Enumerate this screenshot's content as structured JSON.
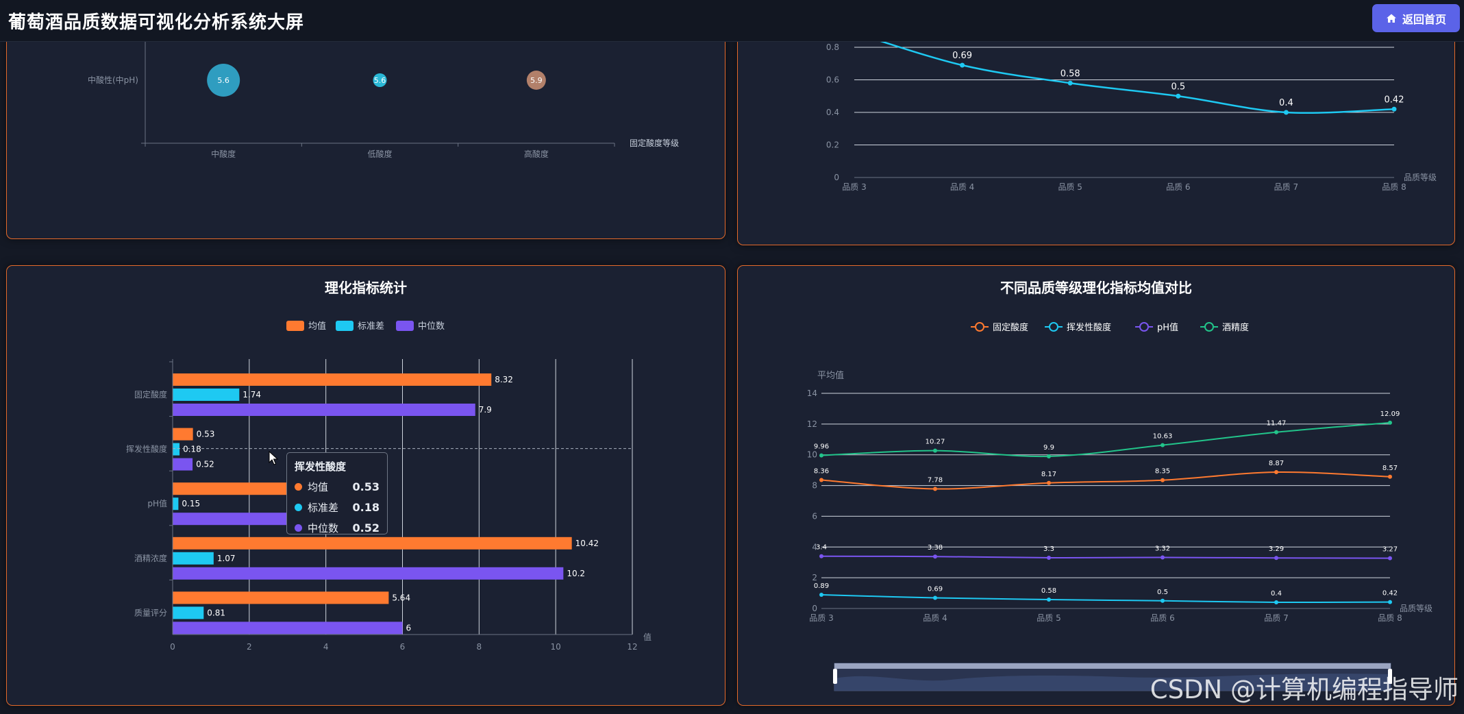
{
  "app": {
    "title": "葡萄酒品质数据可视化分析系统大屏",
    "home_button": "返回首页",
    "watermark": "CSDN @计算机编程指导师"
  },
  "colors": {
    "panel_border": "#e56a2a",
    "accent_button": "#5b63e8",
    "orange": "#ff7a30",
    "cyan": "#1ec9f2",
    "purple": "#7a55f0",
    "green": "#22c48a"
  },
  "chart_data": [
    {
      "id": "bubble",
      "type": "scatter",
      "title": "",
      "ylabel_category": "中酸性(中pH)",
      "categories": [
        "中酸度",
        "低酸度",
        "高酸度"
      ],
      "xlabel": "固定酸度等级",
      "points": [
        {
          "category": "中酸度",
          "value": 5.6,
          "color": "#2f9dc0",
          "size": "large"
        },
        {
          "category": "低酸度",
          "value": 5.6,
          "color": "#2ab8d6",
          "size": "small"
        },
        {
          "category": "高酸度",
          "value": 5.9,
          "color": "#b2806a",
          "size": "medium"
        }
      ]
    },
    {
      "id": "volatile_line",
      "type": "line",
      "title": "",
      "categories": [
        "品质 3",
        "品质 4",
        "品质 5",
        "品质 6",
        "品质 7",
        "品质 8"
      ],
      "xlabel": "品质等级",
      "yticks": [
        "0",
        "0.2",
        "0.4",
        "0.6",
        "0.8"
      ],
      "ylim": [
        0,
        0.8
      ],
      "values": [
        0.89,
        0.69,
        0.58,
        0.5,
        0.4,
        0.42
      ],
      "labels": [
        "",
        "0.69",
        "0.58",
        "0.5",
        "0.4",
        "0.42"
      ],
      "color": "#1ec9f2"
    },
    {
      "id": "stats_bar",
      "type": "bar",
      "orientation": "horizontal",
      "title": "理化指标统计",
      "categories": [
        "固定酸度",
        "挥发性酸度",
        "pH值",
        "酒精浓度",
        "质量评分"
      ],
      "legend": [
        "均值",
        "标准差",
        "中位数"
      ],
      "series": [
        {
          "name": "均值",
          "values": [
            8.32,
            0.53,
            3.31,
            10.42,
            5.64
          ],
          "labels": [
            "8.32",
            "0.53",
            "",
            "10.42",
            "5.64"
          ],
          "color": "#ff7a30"
        },
        {
          "name": "标准差",
          "values": [
            1.74,
            0.18,
            0.15,
            1.07,
            0.81
          ],
          "labels": [
            "1.74",
            "0.18",
            "0.15",
            "1.07",
            "0.81"
          ],
          "color": "#1ec9f2"
        },
        {
          "name": "中位数",
          "values": [
            7.9,
            0.52,
            3.31,
            10.2,
            6
          ],
          "labels": [
            "7.9",
            "0.52",
            "",
            "10.2",
            "6"
          ],
          "color": "#7a55f0"
        }
      ],
      "xticks": [
        "0",
        "2",
        "4",
        "6",
        "8",
        "10",
        "12"
      ],
      "xlim": [
        0,
        12
      ],
      "xlabel": "值",
      "tooltip": {
        "title": "挥发性酸度",
        "rows": [
          {
            "label": "均值",
            "value": "0.53",
            "color": "#ff7a30"
          },
          {
            "label": "标准差",
            "value": "0.18",
            "color": "#1ec9f2"
          },
          {
            "label": "中位数",
            "value": "0.52",
            "color": "#7a55f0"
          }
        ]
      }
    },
    {
      "id": "quality_compare",
      "type": "line",
      "title": "不同品质等级理化指标均值对比",
      "categories": [
        "品质 3",
        "品质 4",
        "品质 5",
        "品质 6",
        "品质 7",
        "品质 8"
      ],
      "ylabel": "平均值",
      "xlabel": "品质等级",
      "yticks": [
        "0",
        "2",
        "4",
        "6",
        "8",
        "10",
        "12",
        "14"
      ],
      "ylim": [
        0,
        14
      ],
      "legend": [
        "固定酸度",
        "挥发性酸度",
        "pH值",
        "酒精度"
      ],
      "series": [
        {
          "name": "固定酸度",
          "values": [
            8.36,
            7.78,
            8.17,
            8.35,
            8.87,
            8.57
          ],
          "labels": [
            "8.36",
            "7.78",
            "8.17",
            "8.35",
            "8.87",
            "8.57"
          ],
          "color": "#ff7a30"
        },
        {
          "name": "挥发性酸度",
          "values": [
            0.89,
            0.69,
            0.58,
            0.5,
            0.4,
            0.42
          ],
          "labels": [
            "0.89",
            "0.69",
            "0.58",
            "0.5",
            "0.4",
            "0.42"
          ],
          "color": "#1ec9f2"
        },
        {
          "name": "pH值",
          "values": [
            3.4,
            3.38,
            3.3,
            3.32,
            3.29,
            3.27
          ],
          "labels": [
            "3.4",
            "3.38",
            "3.3",
            "3.32",
            "3.29",
            "3.27"
          ],
          "color": "#7a55f0"
        },
        {
          "name": "酒精度",
          "values": [
            9.96,
            10.27,
            9.9,
            10.63,
            11.47,
            12.09
          ],
          "labels": [
            "9.96",
            "10.27",
            "9.9",
            "10.63",
            "11.47",
            "12.09"
          ],
          "color": "#22c48a"
        }
      ]
    }
  ]
}
